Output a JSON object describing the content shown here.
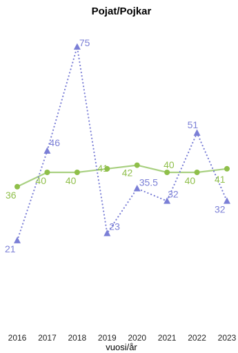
{
  "chart_data": {
    "type": "line",
    "title": "Pojat/Pojkar",
    "xlabel": "vuosi/år",
    "ylabel": "",
    "x": [
      "2016",
      "2017",
      "2018",
      "2019",
      "2020",
      "2021",
      "2022",
      "2023"
    ],
    "ylim": [
      0,
      85
    ],
    "grid": false,
    "series": [
      {
        "color": "#8fbf4a",
        "line_color": "#a8d080",
        "style": "solid",
        "marker": "circle",
        "values": [
          36,
          40,
          40,
          41,
          42,
          40,
          40,
          41
        ],
        "labels": [
          "36",
          "40",
          "40",
          "41",
          "42",
          "40",
          "40",
          "41"
        ]
      },
      {
        "color": "#7b7fd6",
        "line_color": "#7b7fd6",
        "style": "dotted",
        "marker": "triangle",
        "values": [
          21,
          46,
          75,
          23,
          35.5,
          32,
          51,
          32
        ],
        "labels": [
          "21",
          "46",
          "75",
          "23",
          "35.5",
          "32",
          "51",
          "32"
        ]
      }
    ]
  }
}
